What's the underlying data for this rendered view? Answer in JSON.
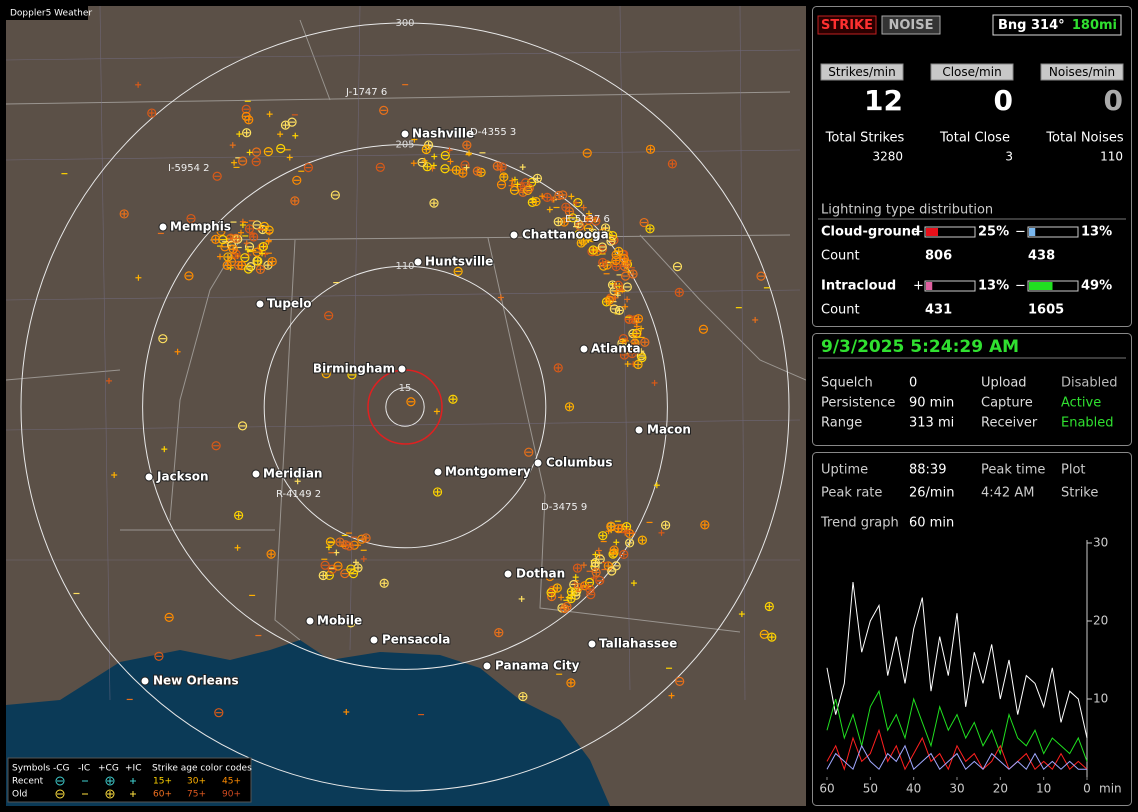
{
  "app_title": "Doppler5 Weather",
  "map": {
    "range_rings": [
      300,
      205,
      110,
      15
    ],
    "cities": [
      "Nashville",
      "Memphis",
      "Chattanooga",
      "Huntsville",
      "Tupelo",
      "Atlanta",
      "Birmingham",
      "Macon",
      "Columbus",
      "Montgomery",
      "Jackson",
      "Meridian",
      "Dothan",
      "Mobile",
      "Pensacola",
      "Panama City",
      "Tallahassee",
      "New Orleans"
    ],
    "stations": [
      "J-1747 6",
      "D-4355 3",
      "I-5954 2",
      "E-5137 6",
      "R-4149 2",
      "D-3475 9"
    ],
    "legend": {
      "symbols_label": "Symbols",
      "types": [
        "-CG",
        "-IC",
        "+CG",
        "+IC"
      ],
      "age_title": "Strike age color codes",
      "rows": [
        "Recent",
        "Old"
      ],
      "ages": [
        "15+",
        "30+",
        "45+",
        "60+",
        "75+",
        "90+"
      ]
    }
  },
  "status": {
    "buttons": [
      "STRIKE",
      "NOISE"
    ],
    "bearing": "Bng 314°",
    "distance": "180mi",
    "rates": [
      {
        "label": "Strikes/min",
        "value": 12
      },
      {
        "label": "Close/min",
        "value": 0
      },
      {
        "label": "Noises/min",
        "value": 0
      }
    ],
    "totals": [
      {
        "label": "Total Strikes",
        "value": 3280
      },
      {
        "label": "Total Close",
        "value": 3
      },
      {
        "label": "Total Noises",
        "value": 110
      }
    ],
    "distribution": {
      "title": "Lightning type distribution",
      "count_label": "Count",
      "rows": [
        {
          "name": "Cloud-ground",
          "pos_sign": "+",
          "neg_sign": "−",
          "pos": {
            "value": 25,
            "label": "25%"
          },
          "neg": {
            "value": 13,
            "label": "13%"
          },
          "pos_count": 806,
          "neg_count": 438,
          "pos_color": "#e8101a",
          "neg_color": "#7ab8f0"
        },
        {
          "name": "Intracloud",
          "pos_sign": "+",
          "neg_sign": "−",
          "pos": {
            "value": 13,
            "label": "13%"
          },
          "neg": {
            "value": 49,
            "label": "49%"
          },
          "pos_count": 431,
          "neg_count": 1605,
          "pos_color": "#e060a0",
          "neg_color": "#20e020"
        }
      ]
    }
  },
  "settings": {
    "datetime": "9/3/2025 5:24:29 AM",
    "rows": [
      [
        "Squelch",
        "0",
        "Upload",
        "Disabled"
      ],
      [
        "Persistence",
        "90 min",
        "Capture",
        "Active"
      ],
      [
        "Range",
        "313 mi",
        "Receiver",
        "Enabled"
      ]
    ]
  },
  "stats": {
    "rows": [
      [
        "Uptime",
        "88:39",
        "Peak time",
        "Plot"
      ],
      [
        "Peak rate",
        "26/min",
        "4:42 AM",
        "Strike"
      ]
    ],
    "trend_label": "Trend graph",
    "trend_value": "60 min"
  },
  "chart_data": {
    "type": "line",
    "x": [
      60,
      58,
      56,
      54,
      52,
      50,
      48,
      46,
      44,
      42,
      40,
      38,
      36,
      34,
      32,
      30,
      28,
      26,
      24,
      22,
      20,
      18,
      16,
      14,
      12,
      10,
      8,
      6,
      4,
      2,
      0
    ],
    "xlim": [
      60,
      0
    ],
    "xticks": [
      60,
      50,
      40,
      30,
      20,
      10,
      0
    ],
    "xlabel": "min",
    "ylim": [
      0,
      30
    ],
    "yticks": [
      10,
      20,
      30
    ],
    "series": [
      {
        "color": "#ffffff",
        "values": [
          14,
          8,
          12,
          25,
          16,
          20,
          22,
          13,
          18,
          12,
          19,
          23,
          11,
          18,
          13,
          21,
          9,
          16,
          12,
          17,
          10,
          15,
          8,
          13,
          12,
          9,
          14,
          7,
          11,
          10,
          5
        ]
      },
      {
        "color": "#20e020",
        "values": [
          6,
          10,
          5,
          8,
          4,
          9,
          11,
          6,
          8,
          5,
          10,
          7,
          4,
          9,
          6,
          8,
          5,
          7,
          4,
          6,
          3,
          8,
          5,
          4,
          6,
          3,
          5,
          4,
          3,
          5,
          2
        ]
      },
      {
        "color": "#ff2020",
        "values": [
          2,
          4,
          1,
          5,
          2,
          3,
          6,
          2,
          4,
          1,
          3,
          5,
          2,
          3,
          1,
          4,
          2,
          3,
          1,
          2,
          4,
          1,
          2,
          3,
          1,
          2,
          1,
          3,
          1,
          2,
          1
        ]
      },
      {
        "color": "#a0a8ff",
        "values": [
          1,
          3,
          2,
          1,
          4,
          2,
          1,
          3,
          2,
          4,
          1,
          2,
          3,
          1,
          2,
          3,
          1,
          2,
          1,
          3,
          2,
          1,
          2,
          1,
          3,
          1,
          2,
          1,
          2,
          1,
          1
        ]
      }
    ]
  }
}
